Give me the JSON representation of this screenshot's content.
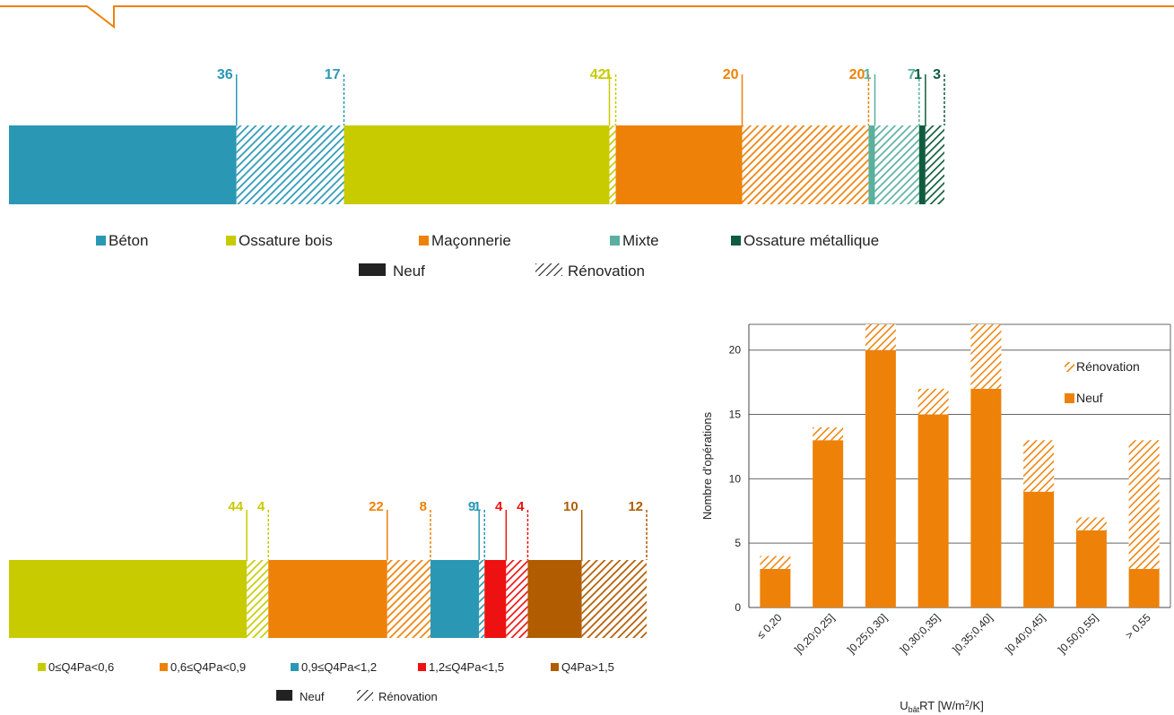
{
  "legend_types": {
    "neuf": "Neuf",
    "renovation": "Rénovation"
  },
  "chart_data": [
    {
      "id": "structure",
      "type": "bar",
      "orientation": "horizontal-stacked",
      "title": "",
      "series": [
        {
          "name": "Béton",
          "color": "#2a98b5",
          "neuf": 36,
          "renovation": 17
        },
        {
          "name": "Ossature bois",
          "color": "#c7cb00",
          "neuf": 42,
          "renovation": 1
        },
        {
          "name": "Maçonnerie",
          "color": "#ee8108",
          "neuf": 20,
          "renovation": 20
        },
        {
          "name": "Mixte",
          "color": "#5ab09e",
          "neuf": 1,
          "renovation": 7
        },
        {
          "name": "Ossature métallique",
          "color": "#0f5c3e",
          "neuf": 1,
          "renovation": 3
        }
      ],
      "legend": "bottom"
    },
    {
      "id": "permeabilite",
      "type": "bar",
      "orientation": "horizontal-stacked",
      "title": "",
      "series": [
        {
          "name": "0≤Q4Pa<0,6",
          "color": "#c7cb00",
          "neuf": 44,
          "renovation": 4
        },
        {
          "name": "0,6≤Q4Pa<0,9",
          "color": "#ee8108",
          "neuf": 22,
          "renovation": 8
        },
        {
          "name": "0,9≤Q4Pa<1,2",
          "color": "#2a98b5",
          "neuf": 9,
          "renovation": 1
        },
        {
          "name": "1,2≤Q4Pa<1,5",
          "color": "#ee1111",
          "neuf": 4,
          "renovation": 4
        },
        {
          "name": "Q4Pa>1,5",
          "color": "#b25c00",
          "neuf": 10,
          "renovation": 12
        }
      ],
      "legend": "bottom"
    },
    {
      "id": "ubat",
      "type": "bar",
      "orientation": "vertical-stacked",
      "title": "",
      "categories": [
        "≤ 0,20",
        "]0,20;0,25]",
        "]0,25;0,30]",
        "]0,30;0,35]",
        "]0,35;0,40]",
        "]0,40;0,45]",
        "]0,50;0,55]",
        "> 0,55"
      ],
      "series": [
        {
          "name": "Neuf",
          "color": "#ee8108",
          "values": [
            3,
            13,
            20,
            15,
            17,
            9,
            6,
            3
          ]
        },
        {
          "name": "Rénovation",
          "color": "#ee8108",
          "pattern": "hatched",
          "values": [
            1,
            1,
            2,
            2,
            5,
            4,
            1,
            10
          ]
        }
      ],
      "xlabel_parts": [
        "U",
        "bât",
        "RT [W/m",
        "2",
        "/K]"
      ],
      "ylabel": "Nombre d'opérations",
      "ylim": [
        0,
        22
      ],
      "yticks": [
        "0",
        "5",
        "10",
        "15",
        "20"
      ],
      "legend": "top-right",
      "grid": true
    }
  ]
}
